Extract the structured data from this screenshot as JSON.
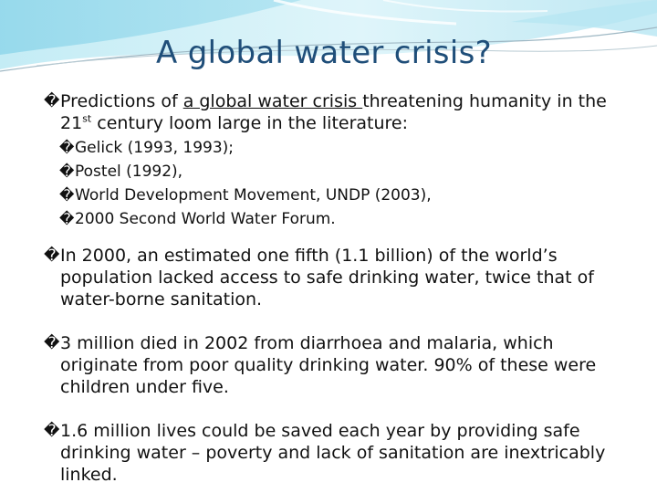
{
  "title": "A global water crisis?",
  "bullet_glyph": "�",
  "p1": {
    "prefix": "Predictions of ",
    "underlined": "a global water crisis ",
    "rest_a": "threatening humanity in the 21",
    "sup": "st",
    "rest_b": " century loom large in the literature:",
    "sources": [
      " Gelick (1993, 1993);",
      "Postel (1992),",
      "World Development Movement, UNDP (2003),",
      "2000 Second World Water Forum."
    ]
  },
  "p2": "In 2000, an estimated one fifth (1.1 billion) of the world’s population lacked access to safe drinking water, twice that of water-borne sanitation.",
  "p3": "3 million died in 2002 from diarrhoea and malaria, which originate from poor quality drinking water. 90% of these were children under five.",
  "p4": "1.6 million lives could be saved each year by providing safe drinking water – poverty and lack of sanitation are inextricably linked.",
  "colors": {
    "title": "#1f4e79",
    "accent": "#7fd0e6"
  }
}
